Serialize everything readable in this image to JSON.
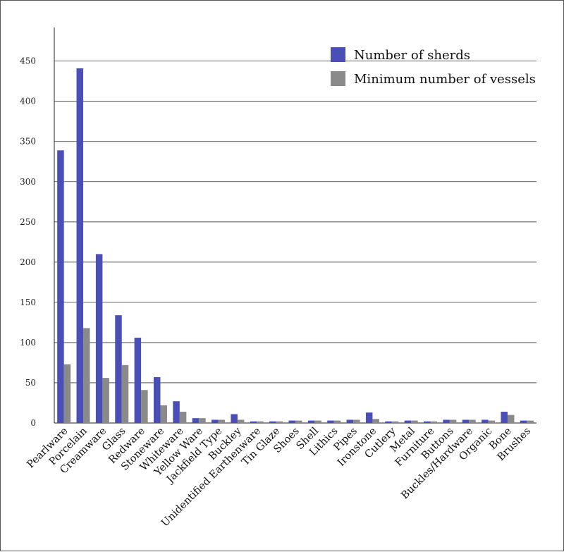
{
  "chart_data": {
    "type": "bar",
    "title": "",
    "xlabel": "",
    "ylabel": "",
    "ylim": [
      0,
      490
    ],
    "yticks": [
      0,
      50,
      100,
      150,
      200,
      250,
      300,
      350,
      400,
      450
    ],
    "grid": "horizontal",
    "legend_position": "top-right",
    "categories": [
      "Pearlware",
      "Porcelain",
      "Creamware",
      "Glass",
      "Redware",
      "Stoneware",
      "Whiteware",
      "Yellow Ware",
      "Jackfield Type",
      "Buckley",
      "Unidentified Earthenware",
      "Tin Glaze",
      "Shoes",
      "Shell",
      "Lithics",
      "Pipes",
      "Ironstone",
      "Cutlery",
      "Metal",
      "Furniture",
      "Buttons",
      "Buckles/Hardware",
      "Organic",
      "Bone",
      "Brushes"
    ],
    "series": [
      {
        "name": "Number of sherds",
        "color": "#4a4fb5",
        "values": [
          339,
          441,
          210,
          134,
          106,
          57,
          27,
          6,
          4,
          11,
          2,
          2,
          3,
          3,
          3,
          4,
          13,
          2,
          3,
          2,
          4,
          4,
          4,
          14,
          3
        ]
      },
      {
        "name": "Minimum number of vessels",
        "color": "#8a8a8a",
        "values": [
          73,
          118,
          56,
          72,
          41,
          22,
          14,
          6,
          4,
          4,
          2,
          2,
          3,
          3,
          3,
          4,
          5,
          2,
          3,
          2,
          4,
          4,
          3,
          10,
          3
        ]
      }
    ]
  }
}
